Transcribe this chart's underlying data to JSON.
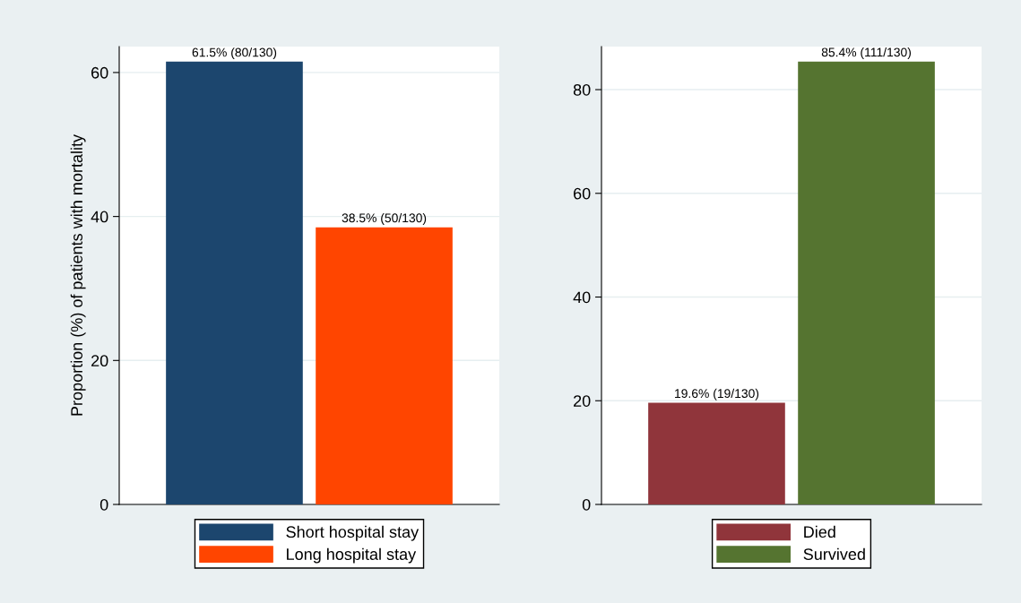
{
  "chart_data": [
    {
      "type": "bar",
      "ylabel": "Proportion (%) of patients with mortality",
      "categories": [
        null
      ],
      "ylim": [
        0,
        63.6
      ],
      "yticks": [
        0,
        20,
        40,
        60
      ],
      "grid": "y",
      "legend": "bottom",
      "series": [
        {
          "name": "Short hospital stay",
          "color": "#1c466e",
          "values": [
            61.5
          ],
          "value_labels": [
            "61.5% (80/130)"
          ]
        },
        {
          "name": "Long hospital stay",
          "color": "#ff4500",
          "values": [
            38.5
          ],
          "value_labels": [
            "38.5% (50/130)"
          ]
        }
      ]
    },
    {
      "type": "bar",
      "categories": [
        null
      ],
      "ylim": [
        0,
        88.3
      ],
      "yticks": [
        0,
        20,
        40,
        60,
        80
      ],
      "grid": "y",
      "legend": "bottom",
      "series": [
        {
          "name": "Died",
          "color": "#90353b",
          "values": [
            19.6
          ],
          "value_labels": [
            "19.6% (19/130)"
          ]
        },
        {
          "name": "Survived",
          "color": "#557430",
          "values": [
            85.4
          ],
          "value_labels": [
            "85.4% (111/130)"
          ]
        }
      ]
    }
  ]
}
